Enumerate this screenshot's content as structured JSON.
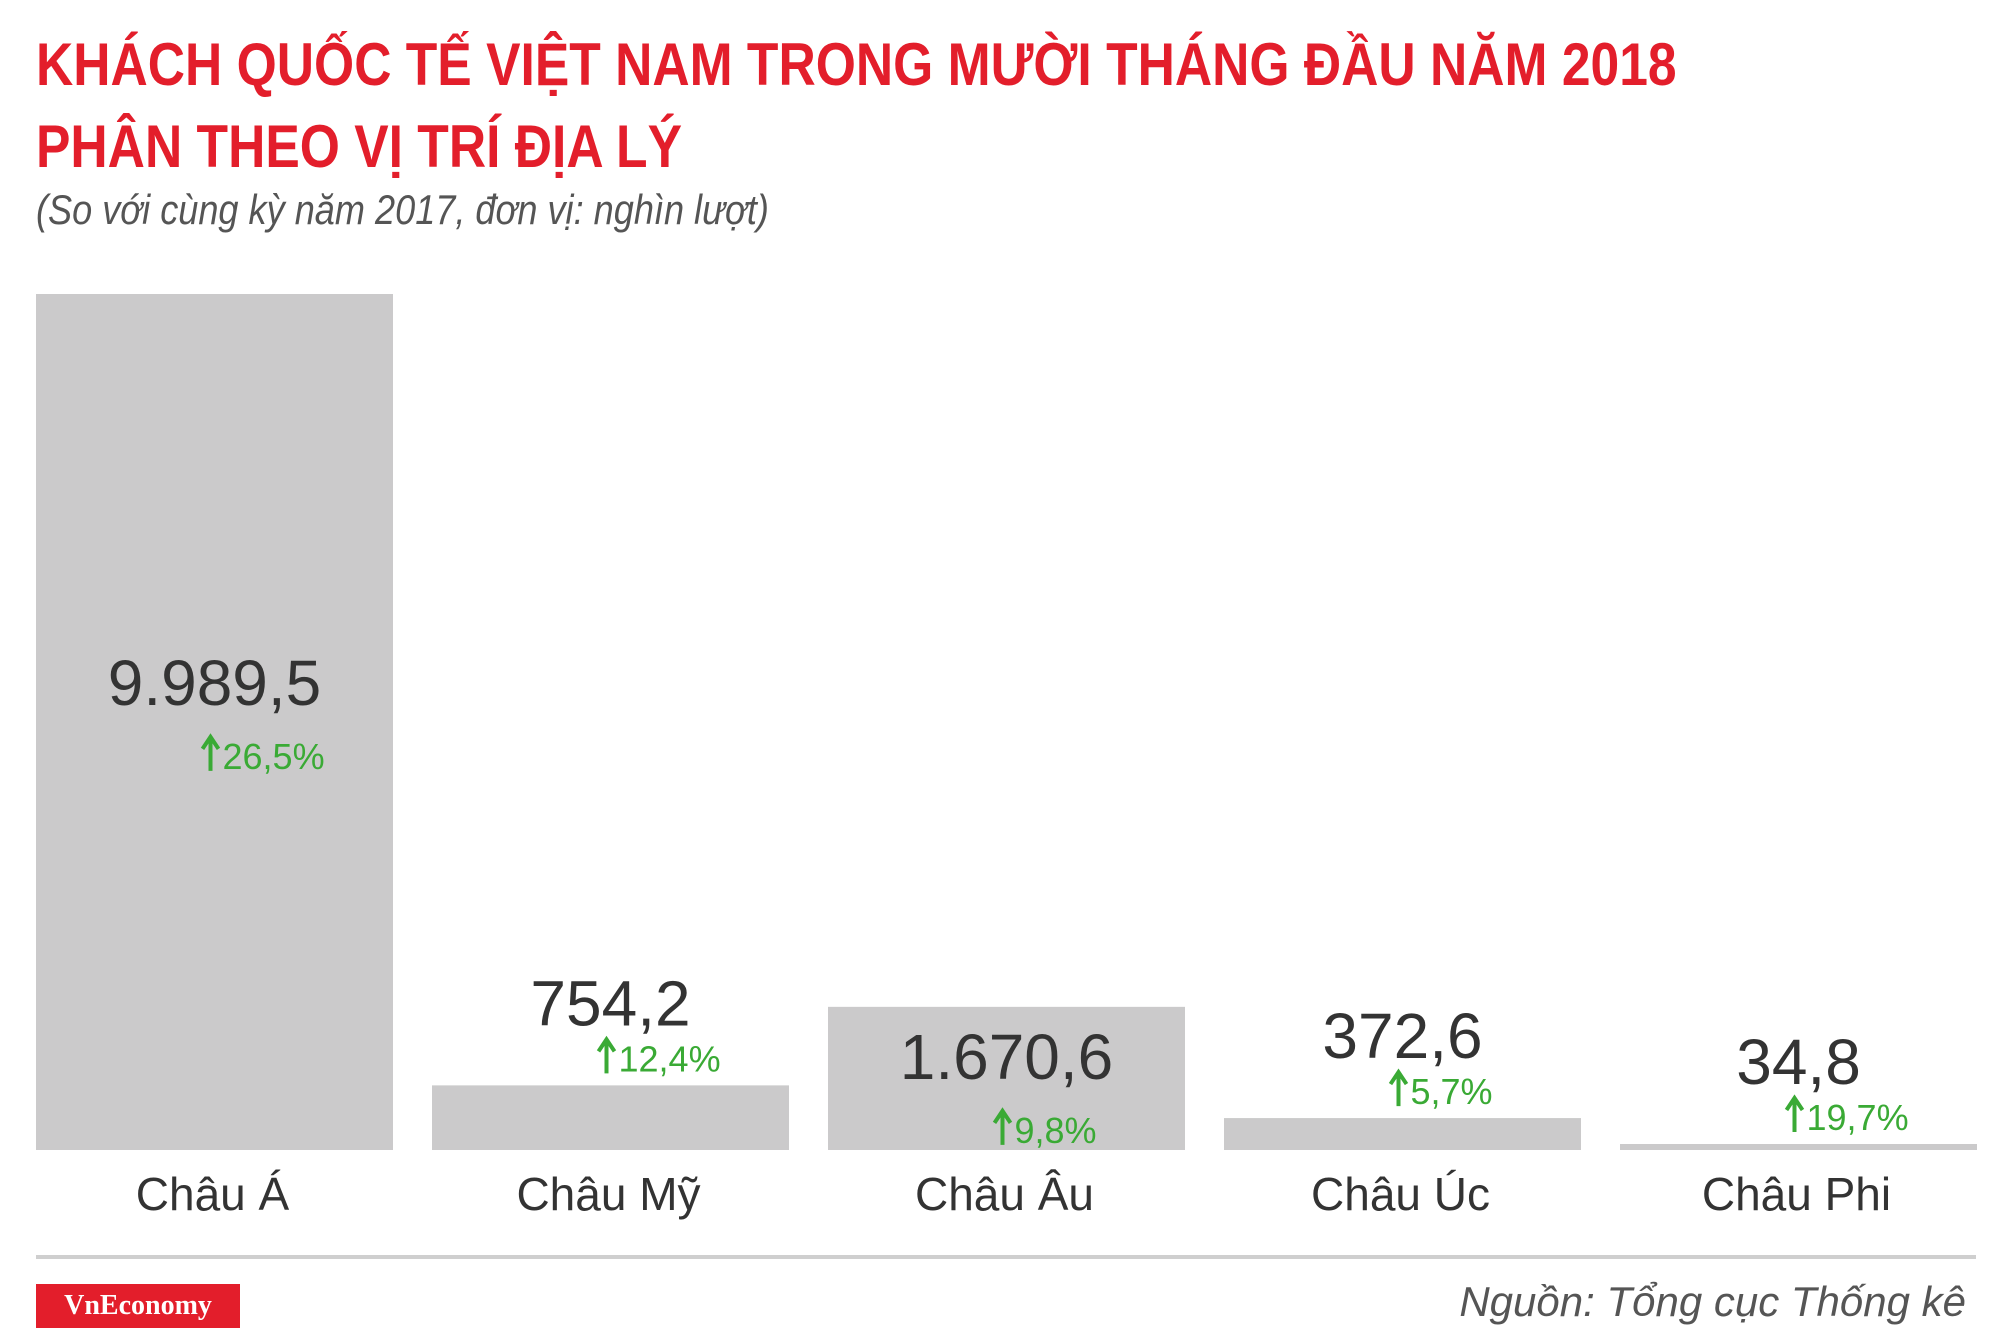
{
  "header": {
    "title_line1": "KHÁCH QUỐC TẾ VIỆT NAM TRONG MƯỜI THÁNG ĐẦU NĂM 2018",
    "title_line2": "PHÂN THEO VỊ TRÍ ĐỊA LÝ",
    "subtitle": "(So với cùng kỳ năm 2017, đơn vị: nghìn lượt)"
  },
  "footer": {
    "brand": "VnEconomy",
    "source": "Nguồn: Tổng cục Thống kê"
  },
  "colors": {
    "title": "#e31e2b",
    "bar": "#cbcacb",
    "increase": "#3aaa35",
    "value_text": "#333333"
  },
  "chart_data": {
    "type": "bar",
    "categories": [
      "Châu Á",
      "Châu Mỹ",
      "Châu Âu",
      "Châu Úc",
      "Châu Phi"
    ],
    "values": [
      9989.5,
      754.2,
      1670.6,
      372.6,
      34.8
    ],
    "value_labels": [
      "9.989,5",
      "754,2",
      "1.670,6",
      "372,6",
      "34,8"
    ],
    "change_labels": [
      "26,5%",
      "12,4%",
      "9,8%",
      "5,7%",
      "19,7%"
    ],
    "change_direction": [
      "up",
      "up",
      "up",
      "up",
      "up"
    ],
    "ylim": [
      0,
      9989.5
    ],
    "grid": false,
    "legend": "none"
  }
}
